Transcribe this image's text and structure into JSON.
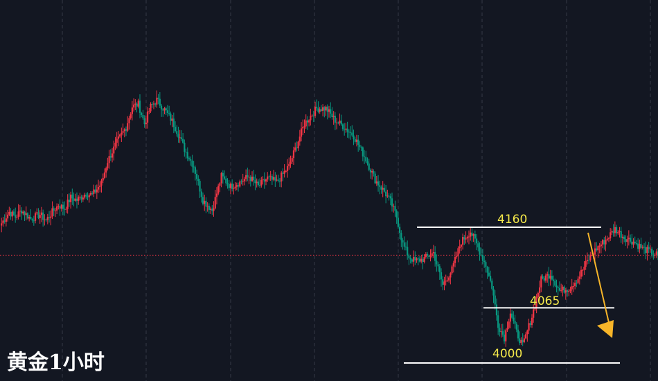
{
  "title": "黄金1小时",
  "colors": {
    "background": "#131722",
    "up": "#f23645",
    "down": "#089981",
    "grid": "#363a45",
    "price_line": "#f23645",
    "level_line": "#ffffff",
    "level_label": "#f5e94a",
    "arrow": "#f7b529"
  },
  "chart_data": {
    "type": "candlestick",
    "title": "黄金1小时",
    "ylim": [
      3985,
      4313
    ],
    "grid": true,
    "current_price": 4127,
    "levels": [
      {
        "value": 4160,
        "label": "4160"
      },
      {
        "value": 4065,
        "label": "4065"
      },
      {
        "value": 4000,
        "label": "4000"
      }
    ],
    "forecast_arrow": {
      "direction": "down",
      "from": 4150,
      "to": 4020
    },
    "anchors": [
      [
        0,
        4162
      ],
      [
        6,
        4178
      ],
      [
        10,
        4172
      ],
      [
        14,
        4180
      ],
      [
        20,
        4170
      ],
      [
        26,
        4175
      ],
      [
        30,
        4168
      ],
      [
        34,
        4178
      ],
      [
        38,
        4186
      ],
      [
        42,
        4182
      ],
      [
        46,
        4195
      ],
      [
        50,
        4192
      ],
      [
        56,
        4200
      ],
      [
        60,
        4198
      ],
      [
        66,
        4212
      ],
      [
        70,
        4238
      ],
      [
        76,
        4260
      ],
      [
        82,
        4278
      ],
      [
        86,
        4302
      ],
      [
        90,
        4305
      ],
      [
        94,
        4282
      ],
      [
        98,
        4302
      ],
      [
        102,
        4310
      ],
      [
        108,
        4296
      ],
      [
        112,
        4285
      ],
      [
        116,
        4270
      ],
      [
        120,
        4252
      ],
      [
        126,
        4232
      ],
      [
        132,
        4192
      ],
      [
        138,
        4180
      ],
      [
        144,
        4220
      ],
      [
        150,
        4208
      ],
      [
        156,
        4213
      ],
      [
        162,
        4220
      ],
      [
        168,
        4208
      ],
      [
        174,
        4218
      ],
      [
        180,
        4213
      ],
      [
        188,
        4232
      ],
      [
        194,
        4262
      ],
      [
        198,
        4282
      ],
      [
        206,
        4300
      ],
      [
        212,
        4300
      ],
      [
        218,
        4286
      ],
      [
        224,
        4278
      ],
      [
        230,
        4268
      ],
      [
        238,
        4240
      ],
      [
        244,
        4216
      ],
      [
        250,
        4202
      ],
      [
        254,
        4190
      ],
      [
        258,
        4172
      ],
      [
        262,
        4140
      ],
      [
        266,
        4125
      ],
      [
        270,
        4120
      ],
      [
        276,
        4123
      ],
      [
        282,
        4130
      ],
      [
        288,
        4092
      ],
      [
        294,
        4110
      ],
      [
        300,
        4143
      ],
      [
        306,
        4155
      ],
      [
        310,
        4140
      ],
      [
        316,
        4115
      ],
      [
        320,
        4090
      ],
      [
        324,
        4045
      ],
      [
        328,
        4030
      ],
      [
        332,
        4060
      ],
      [
        336,
        4036
      ],
      [
        340,
        4020
      ],
      [
        346,
        4055
      ],
      [
        352,
        4098
      ],
      [
        358,
        4105
      ],
      [
        364,
        4085
      ],
      [
        370,
        4088
      ],
      [
        376,
        4100
      ],
      [
        382,
        4120
      ],
      [
        388,
        4135
      ],
      [
        394,
        4145
      ],
      [
        400,
        4158
      ],
      [
        406,
        4148
      ],
      [
        412,
        4143
      ],
      [
        418,
        4135
      ],
      [
        424,
        4130
      ],
      [
        428,
        4127
      ]
    ]
  }
}
